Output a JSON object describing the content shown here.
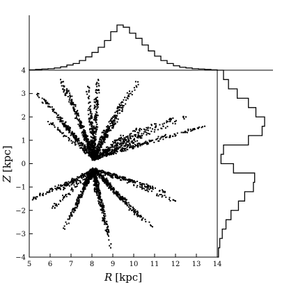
{
  "chart_data": [
    {
      "panel": "main",
      "type": "scatter",
      "xlabel_symbol": "R",
      "xlabel_unit": "[kpc]",
      "ylabel_symbol": "Z",
      "ylabel_unit": "[kpc]",
      "xlim": [
        5,
        14
      ],
      "ylim": [
        -4,
        4
      ],
      "xticks": [
        "5",
        "6",
        "7",
        "8",
        "9",
        "10",
        "11",
        "12",
        "13",
        "14"
      ],
      "yticks": [
        "−4",
        "−3",
        "−2",
        "−1",
        "0",
        "1",
        "2",
        "3",
        "4"
      ],
      "grid": false,
      "description_of_points": "dense fan of stars radiating from R≈8, Z≈0, concentrated 7–9.5 kpc",
      "points": [
        [
          8.0,
          1.0
        ],
        [
          8.1,
          1.6
        ],
        [
          7.9,
          2.3
        ],
        [
          8.2,
          2.8
        ],
        [
          7.8,
          3.3
        ],
        [
          8.3,
          3.6
        ],
        [
          7.4,
          1.9
        ],
        [
          7.1,
          2.6
        ],
        [
          6.8,
          3.2
        ],
        [
          6.5,
          3.6
        ],
        [
          7.6,
          1.3
        ],
        [
          8.6,
          1.4
        ],
        [
          9.0,
          2.0
        ],
        [
          9.4,
          2.6
        ],
        [
          9.8,
          3.1
        ],
        [
          10.2,
          3.5
        ],
        [
          6.2,
          2.2
        ],
        [
          5.8,
          2.7
        ],
        [
          5.4,
          3.0
        ],
        [
          6.6,
          1.7
        ],
        [
          5.9,
          1.8
        ],
        [
          9.5,
          1.2
        ],
        [
          10.3,
          1.5
        ],
        [
          11.0,
          1.7
        ],
        [
          11.8,
          1.9
        ],
        [
          12.5,
          2.0
        ],
        [
          10.0,
          0.9
        ],
        [
          11.5,
          1.2
        ],
        [
          12.9,
          1.5
        ],
        [
          13.4,
          1.6
        ],
        [
          8.0,
          -0.6
        ],
        [
          8.2,
          -1.2
        ],
        [
          8.4,
          -1.8
        ],
        [
          8.6,
          -2.5
        ],
        [
          8.8,
          -3.1
        ],
        [
          8.9,
          -3.6
        ],
        [
          7.6,
          -0.9
        ],
        [
          7.3,
          -1.6
        ],
        [
          7.0,
          -2.2
        ],
        [
          6.7,
          -2.8
        ],
        [
          8.9,
          -0.9
        ],
        [
          9.4,
          -1.5
        ],
        [
          9.9,
          -2.0
        ],
        [
          10.4,
          -2.4
        ],
        [
          10.9,
          -2.7
        ],
        [
          6.5,
          -1.1
        ],
        [
          5.8,
          -1.3
        ],
        [
          5.2,
          -1.5
        ],
        [
          6.1,
          -1.9
        ],
        [
          9.8,
          -0.7
        ],
        [
          10.8,
          -1.0
        ],
        [
          11.5,
          -1.2
        ],
        [
          12.0,
          -1.6
        ]
      ]
    },
    {
      "panel": "top",
      "type": "histogram",
      "xlim": [
        5,
        14
      ],
      "bin_width": 0.3,
      "bin_start": 5.0,
      "counts": [
        0.5,
        1,
        1.5,
        2,
        3,
        4.5,
        7,
        9,
        13,
        18,
        24,
        31,
        40,
        52,
        61,
        58,
        50,
        43,
        34,
        26,
        19,
        13,
        9,
        6,
        4,
        3,
        2,
        1.5,
        1,
        0.5
      ]
    },
    {
      "panel": "right",
      "type": "histogram",
      "orientation": "horizontal",
      "ylim": [
        -4,
        4
      ],
      "bin_width": 0.4,
      "bin_start": -4.0,
      "counts": [
        1,
        2,
        4,
        7,
        11,
        17,
        22,
        29,
        30,
        13,
        3,
        5,
        25,
        36,
        38,
        31,
        25,
        16,
        9,
        5
      ]
    }
  ]
}
